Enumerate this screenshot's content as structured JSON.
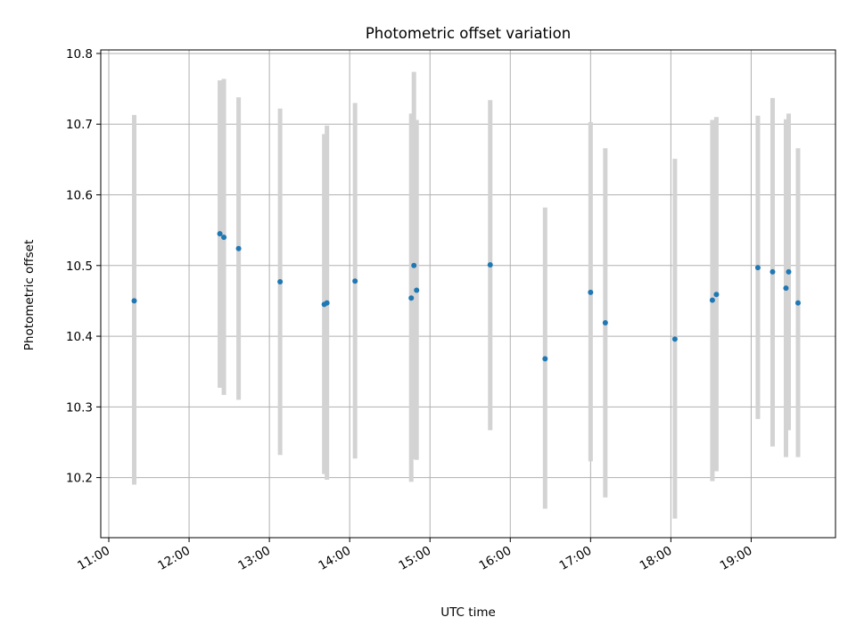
{
  "chart_data": {
    "type": "scatter",
    "title": "Photometric offset variation",
    "xlabel": "UTC time",
    "ylabel": "Photometric offset",
    "grid": true,
    "xlim": [
      "10:54",
      "20:03"
    ],
    "ylim": [
      10.115,
      10.805
    ],
    "x_ticks": [
      "11:00",
      "12:00",
      "13:00",
      "14:00",
      "15:00",
      "16:00",
      "17:00",
      "18:00",
      "19:00"
    ],
    "y_ticks": [
      "10.2",
      "10.3",
      "10.4",
      "10.5",
      "10.6",
      "10.7",
      "10.8"
    ],
    "colors": {
      "points": "#1f77b4",
      "error_bars": "#d3d3d3"
    },
    "series": [
      {
        "points": [
          {
            "x": "11:19",
            "y": 10.45,
            "y_low": 10.19,
            "y_high": 10.713
          },
          {
            "x": "12:23",
            "y": 10.545,
            "y_low": 10.327,
            "y_high": 10.762
          },
          {
            "x": "12:26",
            "y": 10.54,
            "y_low": 10.317,
            "y_high": 10.764
          },
          {
            "x": "12:37",
            "y": 10.524,
            "y_low": 10.31,
            "y_high": 10.738
          },
          {
            "x": "13:08",
            "y": 10.477,
            "y_low": 10.232,
            "y_high": 10.722
          },
          {
            "x": "13:41",
            "y": 10.445,
            "y_low": 10.205,
            "y_high": 10.686
          },
          {
            "x": "13:43",
            "y": 10.447,
            "y_low": 10.197,
            "y_high": 10.698
          },
          {
            "x": "14:04",
            "y": 10.478,
            "y_low": 10.227,
            "y_high": 10.73
          },
          {
            "x": "14:46",
            "y": 10.454,
            "y_low": 10.194,
            "y_high": 10.715
          },
          {
            "x": "14:48",
            "y": 10.5,
            "y_low": 10.226,
            "y_high": 10.774
          },
          {
            "x": "14:50",
            "y": 10.465,
            "y_low": 10.225,
            "y_high": 10.706
          },
          {
            "x": "15:45",
            "y": 10.501,
            "y_low": 10.267,
            "y_high": 10.734
          },
          {
            "x": "16:26",
            "y": 10.368,
            "y_low": 10.156,
            "y_high": 10.582
          },
          {
            "x": "17:00",
            "y": 10.462,
            "y_low": 10.223,
            "y_high": 10.703
          },
          {
            "x": "17:11",
            "y": 10.419,
            "y_low": 10.172,
            "y_high": 10.666
          },
          {
            "x": "18:03",
            "y": 10.396,
            "y_low": 10.142,
            "y_high": 10.651
          },
          {
            "x": "18:31",
            "y": 10.451,
            "y_low": 10.195,
            "y_high": 10.706
          },
          {
            "x": "18:34",
            "y": 10.459,
            "y_low": 10.209,
            "y_high": 10.71
          },
          {
            "x": "19:05",
            "y": 10.497,
            "y_low": 10.283,
            "y_high": 10.712
          },
          {
            "x": "19:16",
            "y": 10.491,
            "y_low": 10.244,
            "y_high": 10.737
          },
          {
            "x": "19:26",
            "y": 10.468,
            "y_low": 10.229,
            "y_high": 10.707
          },
          {
            "x": "19:28",
            "y": 10.491,
            "y_low": 10.267,
            "y_high": 10.715
          },
          {
            "x": "19:35",
            "y": 10.447,
            "y_low": 10.229,
            "y_high": 10.666
          }
        ]
      }
    ]
  }
}
